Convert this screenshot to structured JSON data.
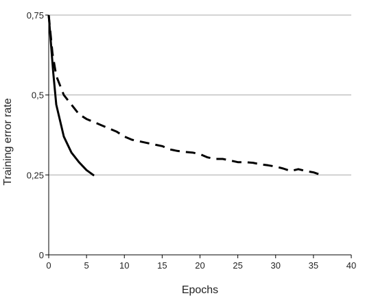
{
  "chart_data": {
    "type": "line",
    "title": "",
    "xlabel": "Epochs",
    "ylabel": "Training error rate",
    "xlim": [
      0,
      40
    ],
    "ylim": [
      0,
      0.75
    ],
    "x_ticks": [
      0,
      5,
      10,
      15,
      20,
      25,
      30,
      35,
      40
    ],
    "x_tick_labels": [
      "0",
      "5",
      "10",
      "15",
      "20",
      "25",
      "30",
      "35",
      "40"
    ],
    "y_ticks": [
      0,
      0.25,
      0.5,
      0.75
    ],
    "y_tick_labels": [
      "0",
      "0,25",
      "0,5",
      "0,75"
    ],
    "grid": "horizontal",
    "legend": "none",
    "series": [
      {
        "style": "solid",
        "color": "#000000",
        "x": [
          0,
          0.3,
          0.6,
          1,
          1.5,
          2,
          3,
          4,
          5,
          6
        ],
        "y": [
          0.75,
          0.66,
          0.57,
          0.47,
          0.42,
          0.37,
          0.32,
          0.29,
          0.265,
          0.248
        ]
      },
      {
        "style": "dashed",
        "color": "#000000",
        "x": [
          0,
          0.5,
          1,
          1.5,
          2,
          3,
          4,
          5,
          6,
          7,
          8,
          9,
          10,
          11,
          12,
          13,
          14,
          15,
          16,
          17,
          18,
          19,
          20,
          21,
          22,
          23,
          24,
          25,
          26,
          27,
          28,
          29,
          30,
          31,
          32,
          33,
          34,
          35,
          36
        ],
        "y": [
          0.75,
          0.63,
          0.56,
          0.53,
          0.5,
          0.47,
          0.44,
          0.425,
          0.415,
          0.405,
          0.395,
          0.385,
          0.37,
          0.36,
          0.355,
          0.35,
          0.345,
          0.34,
          0.33,
          0.325,
          0.322,
          0.32,
          0.315,
          0.305,
          0.3,
          0.3,
          0.295,
          0.29,
          0.29,
          0.288,
          0.283,
          0.28,
          0.276,
          0.27,
          0.262,
          0.268,
          0.262,
          0.258,
          0.25
        ]
      }
    ]
  }
}
